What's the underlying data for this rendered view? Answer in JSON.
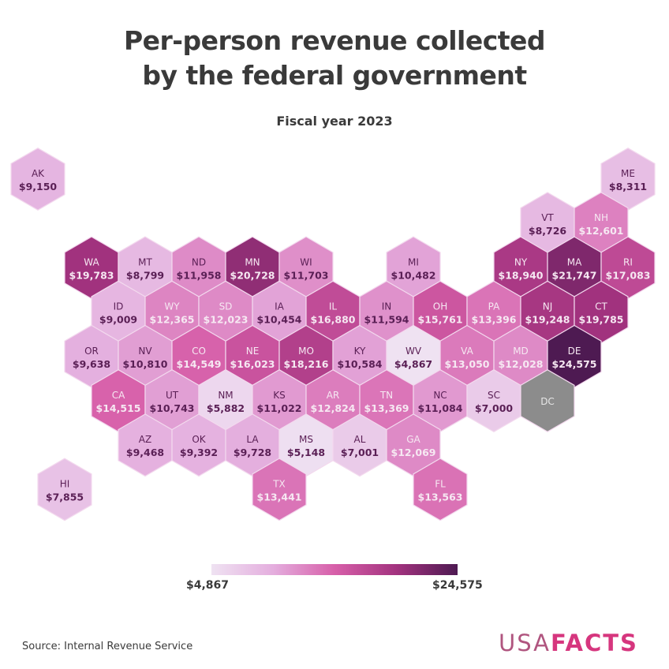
{
  "header": {
    "title_line1": "Per-person revenue collected",
    "title_line2": "by the federal government",
    "subtitle": "Fiscal year 2023"
  },
  "legend": {
    "min_label": "$4,867",
    "max_label": "$24,575",
    "colors": [
      "#efe2f2",
      "#e4aede",
      "#d75fa9",
      "#a3337f",
      "#4e1a52"
    ]
  },
  "footer": {
    "source": "Source: Internal Revenue Service",
    "logo_usa": "USA",
    "logo_facts": "FACTS"
  },
  "chart_data": {
    "type": "heatmap",
    "subtype": "hex tile map",
    "title": "Per-person revenue collected by the federal government",
    "subtitle": "Fiscal year 2023",
    "units": "USD per person",
    "color_scale": {
      "min": 4867,
      "max": 24575,
      "min_label": "$4,867",
      "max_label": "$24,575"
    },
    "no_data_color": "#8c8c8c",
    "states": [
      {
        "abbr": "AK",
        "value": 9150,
        "label": "$9,150",
        "row": 0,
        "col": 0
      },
      {
        "abbr": "ME",
        "value": 8311,
        "label": "$8,311",
        "row": 0,
        "col": 11
      },
      {
        "abbr": "VT",
        "value": 8726,
        "label": "$8,726",
        "row": 1,
        "col": 9
      },
      {
        "abbr": "NH",
        "value": 12601,
        "label": "$12,601",
        "row": 1,
        "col": 10
      },
      {
        "abbr": "WA",
        "value": 19783,
        "label": "$19,783",
        "row": 2,
        "col": 1
      },
      {
        "abbr": "MT",
        "value": 8799,
        "label": "$8,799",
        "row": 2,
        "col": 2
      },
      {
        "abbr": "ND",
        "value": 11958,
        "label": "$11,958",
        "row": 2,
        "col": 3
      },
      {
        "abbr": "MN",
        "value": 20728,
        "label": "$20,728",
        "row": 2,
        "col": 4
      },
      {
        "abbr": "WI",
        "value": 11703,
        "label": "$11,703",
        "row": 2,
        "col": 5
      },
      {
        "abbr": "MI",
        "value": 10482,
        "label": "$10,482",
        "row": 2,
        "col": 7
      },
      {
        "abbr": "NY",
        "value": 18940,
        "label": "$18,940",
        "row": 2,
        "col": 9
      },
      {
        "abbr": "MA",
        "value": 21747,
        "label": "$21,747",
        "row": 2,
        "col": 10
      },
      {
        "abbr": "RI",
        "value": 17083,
        "label": "$17,083",
        "row": 2,
        "col": 11
      },
      {
        "abbr": "ID",
        "value": 9009,
        "label": "$9,009",
        "row": 3,
        "col": 1
      },
      {
        "abbr": "WY",
        "value": 12365,
        "label": "$12,365",
        "row": 3,
        "col": 2
      },
      {
        "abbr": "SD",
        "value": 12023,
        "label": "$12,023",
        "row": 3,
        "col": 3
      },
      {
        "abbr": "IA",
        "value": 10454,
        "label": "$10,454",
        "row": 3,
        "col": 4
      },
      {
        "abbr": "IL",
        "value": 16880,
        "label": "$16,880",
        "row": 3,
        "col": 5
      },
      {
        "abbr": "IN",
        "value": 11594,
        "label": "$11,594",
        "row": 3,
        "col": 6
      },
      {
        "abbr": "OH",
        "value": 15761,
        "label": "$15,761",
        "row": 3,
        "col": 7
      },
      {
        "abbr": "PA",
        "value": 13396,
        "label": "$13,396",
        "row": 3,
        "col": 8
      },
      {
        "abbr": "NJ",
        "value": 19248,
        "label": "$19,248",
        "row": 3,
        "col": 9
      },
      {
        "abbr": "CT",
        "value": 19785,
        "label": "$19,785",
        "row": 3,
        "col": 10
      },
      {
        "abbr": "OR",
        "value": 9638,
        "label": "$9,638",
        "row": 4,
        "col": 1
      },
      {
        "abbr": "NV",
        "value": 10810,
        "label": "$10,810",
        "row": 4,
        "col": 2
      },
      {
        "abbr": "CO",
        "value": 14549,
        "label": "$14,549",
        "row": 4,
        "col": 3
      },
      {
        "abbr": "NE",
        "value": 16023,
        "label": "$16,023",
        "row": 4,
        "col": 4
      },
      {
        "abbr": "MO",
        "value": 18216,
        "label": "$18,216",
        "row": 4,
        "col": 5
      },
      {
        "abbr": "KY",
        "value": 10584,
        "label": "$10,584",
        "row": 4,
        "col": 6
      },
      {
        "abbr": "WV",
        "value": 4867,
        "label": "$4,867",
        "row": 4,
        "col": 7
      },
      {
        "abbr": "VA",
        "value": 13050,
        "label": "$13,050",
        "row": 4,
        "col": 8
      },
      {
        "abbr": "MD",
        "value": 12028,
        "label": "$12,028",
        "row": 4,
        "col": 9
      },
      {
        "abbr": "DE",
        "value": 24575,
        "label": "$24,575",
        "row": 4,
        "col": 10
      },
      {
        "abbr": "CA",
        "value": 14515,
        "label": "$14,515",
        "row": 5,
        "col": 1
      },
      {
        "abbr": "UT",
        "value": 10743,
        "label": "$10,743",
        "row": 5,
        "col": 2
      },
      {
        "abbr": "NM",
        "value": 5882,
        "label": "$5,882",
        "row": 5,
        "col": 3
      },
      {
        "abbr": "KS",
        "value": 11022,
        "label": "$11,022",
        "row": 5,
        "col": 4
      },
      {
        "abbr": "AR",
        "value": 12824,
        "label": "$12,824",
        "row": 5,
        "col": 5
      },
      {
        "abbr": "TN",
        "value": 13369,
        "label": "$13,369",
        "row": 5,
        "col": 6
      },
      {
        "abbr": "NC",
        "value": 11084,
        "label": "$11,084",
        "row": 5,
        "col": 7
      },
      {
        "abbr": "SC",
        "value": 7000,
        "label": "$7,000",
        "row": 5,
        "col": 8
      },
      {
        "abbr": "DC",
        "value": null,
        "label": "",
        "row": 5,
        "col": 9
      },
      {
        "abbr": "AZ",
        "value": 9468,
        "label": "$9,468",
        "row": 6,
        "col": 2
      },
      {
        "abbr": "OK",
        "value": 9392,
        "label": "$9,392",
        "row": 6,
        "col": 3
      },
      {
        "abbr": "LA",
        "value": 9728,
        "label": "$9,728",
        "row": 6,
        "col": 4
      },
      {
        "abbr": "MS",
        "value": 5148,
        "label": "$5,148",
        "row": 6,
        "col": 5
      },
      {
        "abbr": "AL",
        "value": 7001,
        "label": "$7,001",
        "row": 6,
        "col": 6
      },
      {
        "abbr": "GA",
        "value": 12069,
        "label": "$12,069",
        "row": 6,
        "col": 7
      },
      {
        "abbr": "HI",
        "value": 7855,
        "label": "$7,855",
        "row": 7,
        "col": 0
      },
      {
        "abbr": "TX",
        "value": 13441,
        "label": "$13,441",
        "row": 7,
        "col": 4
      },
      {
        "abbr": "FL",
        "value": 13563,
        "label": "$13,563",
        "row": 7,
        "col": 7
      }
    ]
  }
}
